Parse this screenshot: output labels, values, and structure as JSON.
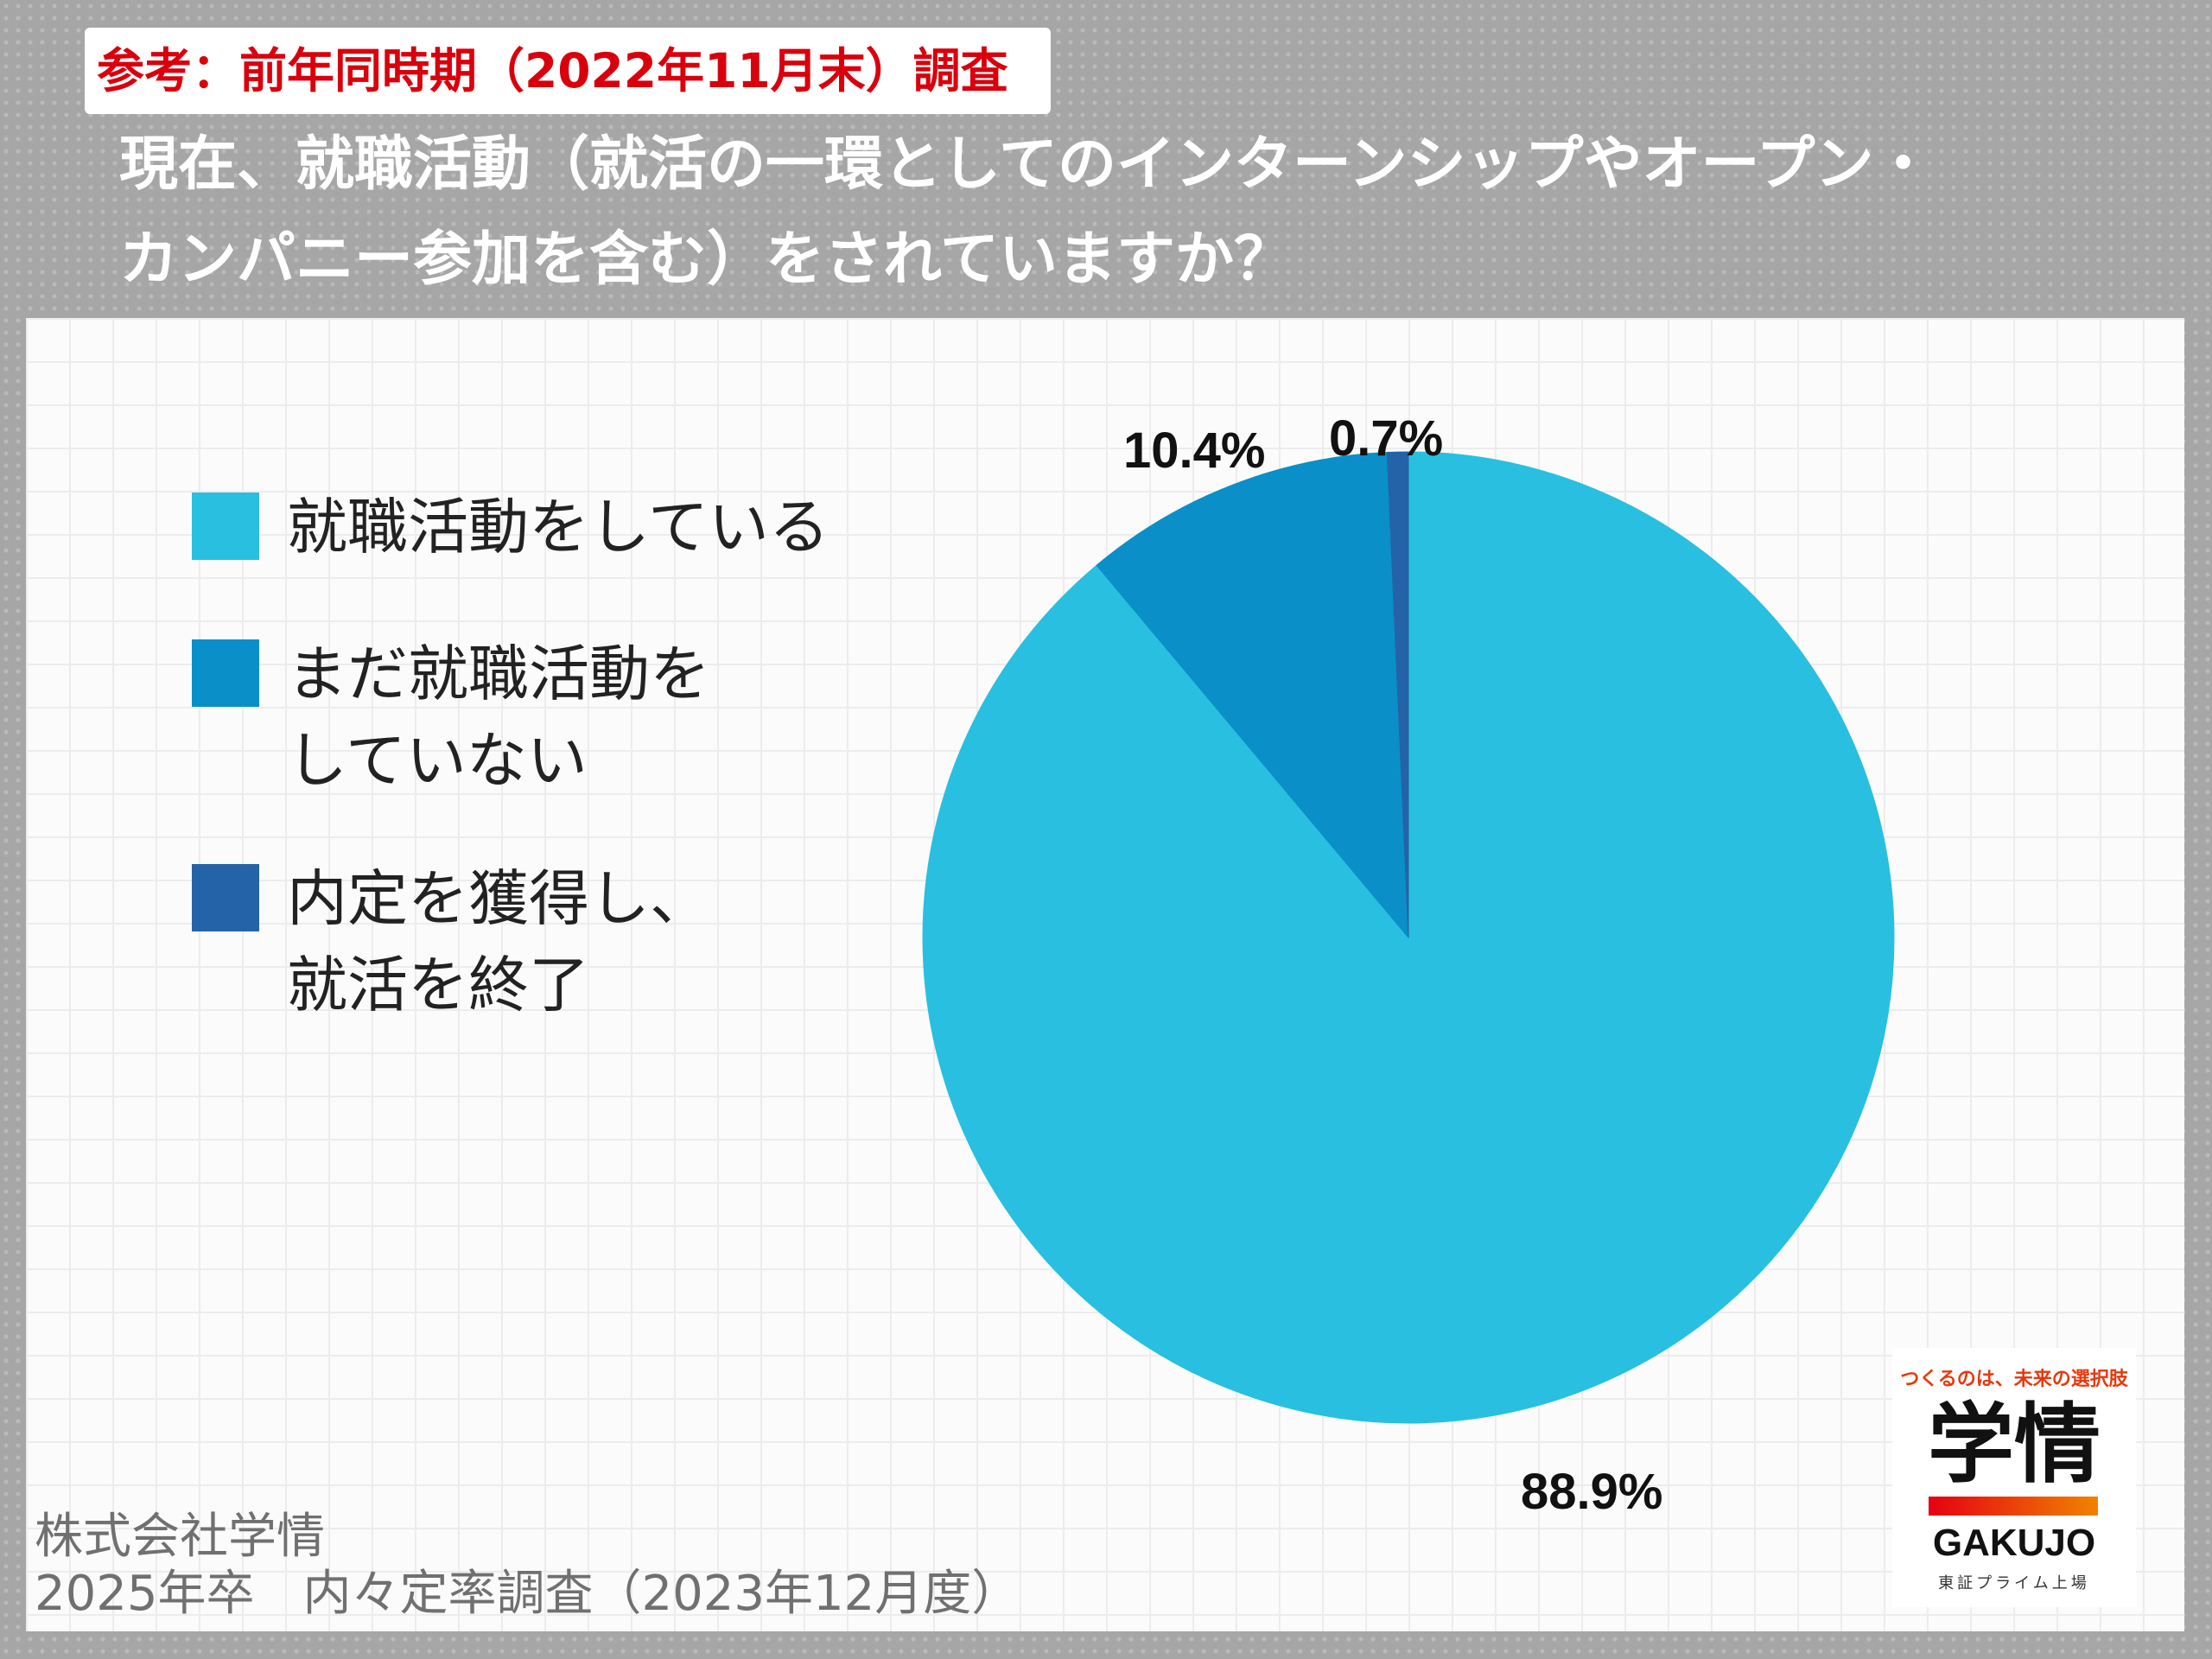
{
  "header": {
    "badge": "参考：前年同時期（2022年11月末）調査",
    "question_line1": "現在、就職活動（就活の一環としてのインターンシップやオープン・",
    "question_line2": "カンパニー参加を含む）をされていますか？"
  },
  "chart_data": {
    "type": "pie",
    "title": "",
    "categories": [
      "就職活動をしている",
      "まだ就職活動をしていない",
      "内定を獲得し、就活を終了"
    ],
    "values": [
      88.9,
      10.4,
      0.7
    ],
    "labels": [
      "88.9%",
      "10.4%",
      "0.7%"
    ],
    "colors": [
      "#29bfe0",
      "#0a8fc8",
      "#2563a8"
    ],
    "legend": {
      "placement": "left",
      "items": [
        {
          "lines": [
            "就職活動をしている"
          ],
          "color": "#29bfe0"
        },
        {
          "lines": [
            "まだ就職活動を",
            "していない"
          ],
          "color": "#0a8fc8"
        },
        {
          "lines": [
            "内定を獲得し、",
            "就活を終了"
          ],
          "color": "#2563a8"
        }
      ]
    }
  },
  "footer": {
    "company": "株式会社学情",
    "survey": "2025年卒　内々定率調査（2023年12月度）"
  },
  "logo": {
    "tagline": "つくるのは、未来の選択肢",
    "main": "学情",
    "english": "GAKUJO",
    "sub": "東証プライム上場"
  }
}
